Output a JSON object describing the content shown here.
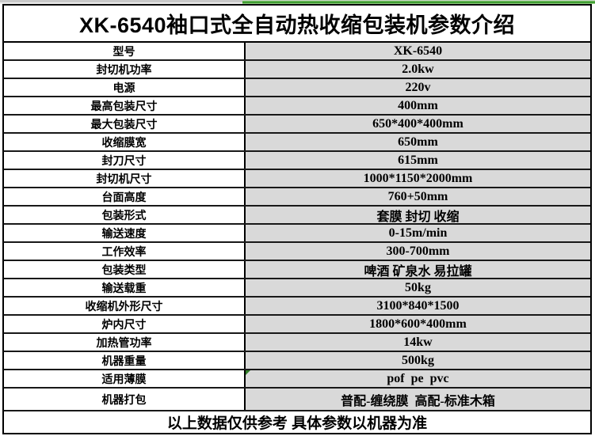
{
  "title": "XK-6540袖口式全自动热收缩包装机参数介绍",
  "footer": "以上数据仅供参考 具体参数以机器为准",
  "colors": {
    "value_cell_bg": "#d9d9d9",
    "label_cell_bg": "#ffffff",
    "border": "#000000",
    "top_strip_green": "#3f9e33",
    "top_strip_gray": "#c9c9c9",
    "error_marker_green": "#2f7d26"
  },
  "icons": {
    "error_check_triangle": "green triangle marker in top-left corner of the film-type value cell"
  },
  "table": {
    "rows": [
      {
        "label": "型号",
        "value": "XK-6540"
      },
      {
        "label": "封切机功率",
        "value": "2.0kw"
      },
      {
        "label": "电源",
        "value": "220v"
      },
      {
        "label": "最高包装尺寸",
        "value": "400mm"
      },
      {
        "label": "最大包装尺寸",
        "value": "650*400*400mm"
      },
      {
        "label": "收缩膜宽",
        "value": "650mm"
      },
      {
        "label": "封刀尺寸",
        "value": "615mm"
      },
      {
        "label": "封切机尺寸",
        "value": "1000*1150*2000mm"
      },
      {
        "label": "台面高度",
        "value": "760+50mm"
      },
      {
        "label": "包装形式",
        "value": "套膜 封切 收缩"
      },
      {
        "label": "输送速度",
        "value": "0-15m/min"
      },
      {
        "label": "工作效率",
        "value": "300-700mm"
      },
      {
        "label": "包装类型",
        "value": "啤酒 矿泉水 易拉罐"
      },
      {
        "label": "输送载重",
        "value": "50kg"
      },
      {
        "label": "收缩机外形尺寸",
        "value": "3100*840*1500"
      },
      {
        "label": "炉内尺寸",
        "value": "1800*600*400mm"
      },
      {
        "label": "加热管功率",
        "value": "14kw"
      },
      {
        "label": "机器重量",
        "value": "500kg"
      },
      {
        "label": "适用薄膜",
        "value": "pof  pe  pvc"
      },
      {
        "label": "机器打包",
        "value": "普配-缠绕膜  高配-标准木箱"
      }
    ]
  }
}
